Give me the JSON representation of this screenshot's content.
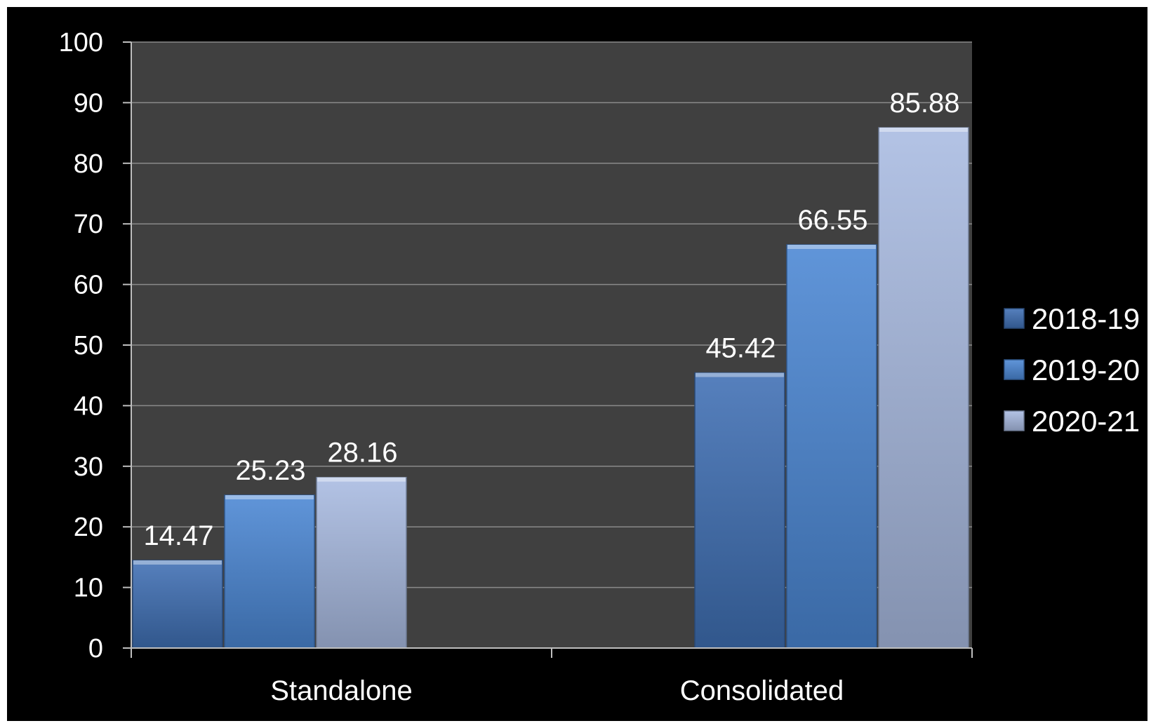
{
  "chart_data": {
    "type": "bar",
    "categories": [
      "Standalone",
      "Consolidated"
    ],
    "series": [
      {
        "name": "2018-19",
        "values": [
          14.47,
          45.42
        ],
        "color": "#3f6fb4"
      },
      {
        "name": "2019-20",
        "values": [
          25.23,
          66.55
        ],
        "color": "#4a86d4"
      },
      {
        "name": "2020-21",
        "values": [
          28.16,
          85.88
        ],
        "color": "#a9bbe2"
      }
    ],
    "yticks": [
      "0",
      "10",
      "20",
      "30",
      "40",
      "50",
      "60",
      "70",
      "80",
      "90",
      "100"
    ],
    "ylim": [
      0,
      100
    ],
    "title": "",
    "xlabel": "",
    "ylabel": "",
    "grid": true,
    "legend": "right",
    "plot_background": "#404040",
    "background": "#000000"
  }
}
